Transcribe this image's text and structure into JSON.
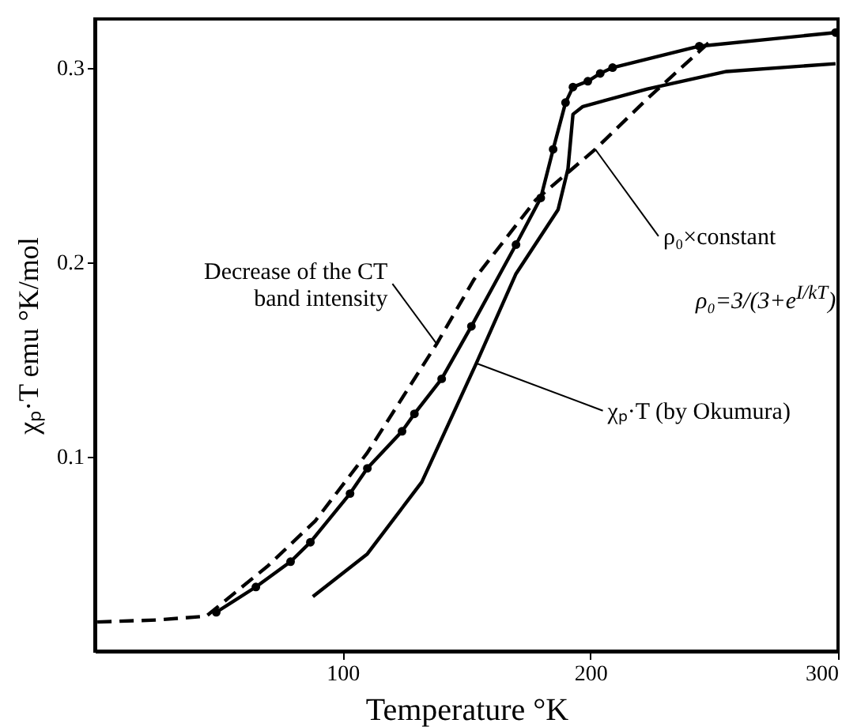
{
  "chart_data": {
    "type": "line",
    "xlabel": "Temperature °K",
    "ylabel": "χₚ·T emu °K/mol",
    "xlim": [
      0,
      300
    ],
    "ylim": [
      0,
      0.325
    ],
    "xticks": [
      100,
      200,
      300
    ],
    "yticks": [
      0.1,
      0.2,
      0.3
    ],
    "grid": false,
    "series": [
      {
        "color": "#000000",
        "line_style": "solid",
        "marker": "circle",
        "x": [
          49,
          65,
          79,
          87,
          103,
          110,
          124,
          129,
          140,
          152,
          170,
          180,
          185,
          190,
          193,
          199,
          204,
          209,
          244,
          299
        ],
        "values": [
          0.02,
          0.033,
          0.046,
          0.056,
          0.081,
          0.094,
          0.113,
          0.122,
          0.14,
          0.167,
          0.209,
          0.233,
          0.258,
          0.282,
          0.29,
          0.293,
          0.297,
          0.3,
          0.311,
          0.318
        ]
      },
      {
        "color": "#000000",
        "line_style": "solid",
        "marker": "none",
        "x": [
          88,
          110,
          132,
          154,
          170,
          187,
          191,
          193,
          197,
          223,
          255,
          299
        ],
        "values": [
          0.028,
          0.05,
          0.087,
          0.148,
          0.194,
          0.227,
          0.248,
          0.276,
          0.28,
          0.289,
          0.298,
          0.302
        ]
      },
      {
        "color": "#000000",
        "line_style": "dashed",
        "marker": "none",
        "x": [
          1,
          25,
          45,
          70,
          89,
          110,
          138,
          153,
          178,
          202,
          223,
          248
        ],
        "values": [
          0.015,
          0.016,
          0.018,
          0.044,
          0.067,
          0.102,
          0.158,
          0.191,
          0.232,
          0.258,
          0.284,
          0.313
        ]
      }
    ],
    "annotations": [
      {
        "text": "Decrease of the CT band intensity",
        "x": 138,
        "y": 0.158
      },
      {
        "text": "ρ₀×constant",
        "x": 202,
        "y": 0.258
      },
      "ρ₀=3/(3+e$^{I/kT}$)",
      {
        "text": "χₚ·T (by Okumura)",
        "x": 154,
        "y": 0.148
      }
    ]
  }
}
